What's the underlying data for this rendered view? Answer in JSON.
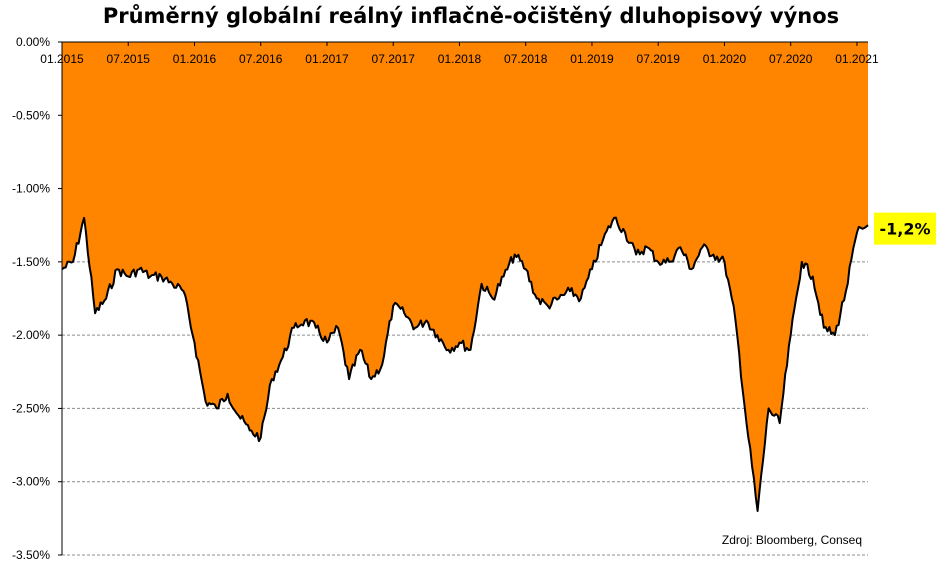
{
  "chart_data": {
    "type": "area",
    "title": "Průměrný globální reálný inflačně-očištěný dluhopisový výnos",
    "xlabel": "",
    "ylabel": "",
    "x_tick_labels": [
      "01.2015",
      "07.2015",
      "01.2016",
      "07.2016",
      "01.2017",
      "07.2017",
      "01.2018",
      "07.2018",
      "01.2019",
      "07.2019",
      "01.2020",
      "07.2020",
      "01.2021"
    ],
    "y_tick_labels": [
      "0.00%",
      "-0.50%",
      "-1.00%",
      "-1.50%",
      "-2.00%",
      "-2.50%",
      "-3.00%",
      "-3.50%"
    ],
    "ylim": [
      -3.5,
      0
    ],
    "xlim": [
      "2015-01",
      "2021-02"
    ],
    "grid": "horizontal dashed",
    "fill_color": "#ff8400",
    "line_color": "#000000",
    "series": [
      {
        "x": [
          "2015-01",
          "2015-02",
          "2015-03",
          "2015-04",
          "2015-05",
          "2015-06",
          "2015-07",
          "2015-08",
          "2015-09",
          "2015-10",
          "2015-11",
          "2015-12",
          "2016-01",
          "2016-02",
          "2016-03",
          "2016-04",
          "2016-05",
          "2016-06",
          "2016-07",
          "2016-08",
          "2016-09",
          "2016-10",
          "2016-11",
          "2016-12",
          "2017-01",
          "2017-02",
          "2017-03",
          "2017-04",
          "2017-05",
          "2017-06",
          "2017-07",
          "2017-08",
          "2017-09",
          "2017-10",
          "2017-11",
          "2017-12",
          "2018-01",
          "2018-02",
          "2018-03",
          "2018-04",
          "2018-05",
          "2018-06",
          "2018-07",
          "2018-08",
          "2018-09",
          "2018-10",
          "2018-11",
          "2018-12",
          "2019-01",
          "2019-02",
          "2019-03",
          "2019-04",
          "2019-05",
          "2019-06",
          "2019-07",
          "2019-08",
          "2019-09",
          "2019-10",
          "2019-11",
          "2019-12",
          "2020-01",
          "2020-02",
          "2020-03",
          "2020-04",
          "2020-05",
          "2020-06",
          "2020-07",
          "2020-08",
          "2020-09",
          "2020-10",
          "2020-11",
          "2020-12",
          "2021-01",
          "2021-02"
        ],
        "y": [
          -1.55,
          -1.5,
          -1.2,
          -1.85,
          -1.75,
          -1.55,
          -1.6,
          -1.55,
          -1.6,
          -1.6,
          -1.65,
          -1.7,
          -2.05,
          -2.45,
          -2.5,
          -2.4,
          -2.55,
          -2.65,
          -2.7,
          -2.3,
          -2.15,
          -1.95,
          -1.9,
          -1.95,
          -2.05,
          -1.95,
          -2.3,
          -2.1,
          -2.3,
          -2.2,
          -1.8,
          -1.85,
          -1.95,
          -1.9,
          -2.0,
          -2.1,
          -2.05,
          -2.1,
          -1.65,
          -1.75,
          -1.6,
          -1.45,
          -1.55,
          -1.75,
          -1.8,
          -1.75,
          -1.7,
          -1.75,
          -1.55,
          -1.35,
          -1.2,
          -1.3,
          -1.45,
          -1.4,
          -1.5,
          -1.5,
          -1.4,
          -1.55,
          -1.4,
          -1.45,
          -1.5,
          -1.9,
          -2.6,
          -3.2,
          -2.5,
          -2.6,
          -2.0,
          -1.5,
          -1.6,
          -1.95,
          -2.0,
          -1.7,
          -1.3,
          -1.25
        ]
      }
    ],
    "annotations": [
      "-1,2%",
      "Zdroj: Bloomberg, Conseq"
    ],
    "callout": {
      "text": "-1,2%",
      "background": "#ffff00"
    }
  }
}
